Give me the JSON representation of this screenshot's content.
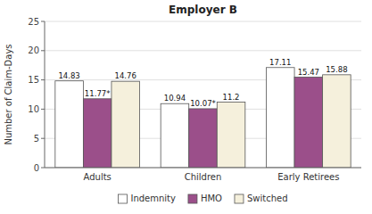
{
  "chart_data": {
    "type": "bar",
    "title": "Employer B",
    "ylabel": "Number of Claim-Days",
    "categories": [
      "Adults",
      "Children",
      "Early Retirees"
    ],
    "series": [
      {
        "name": "Indemnity",
        "color": "#ffffff",
        "values": [
          14.83,
          10.94,
          17.11
        ]
      },
      {
        "name": "HMO",
        "color": "#9B4F8A",
        "values": [
          11.77,
          10.07,
          15.47
        ],
        "value_labels": [
          "11.77*",
          "10.07*",
          "15.47"
        ]
      },
      {
        "name": "Switched",
        "color": "#F5F0DC",
        "values": [
          14.76,
          11.2,
          15.88
        ]
      }
    ],
    "ylim": [
      0,
      25
    ],
    "yticks": [
      0,
      5,
      10,
      15,
      20,
      25
    ],
    "grid": true,
    "data_labels": true,
    "legend": "bottom"
  }
}
